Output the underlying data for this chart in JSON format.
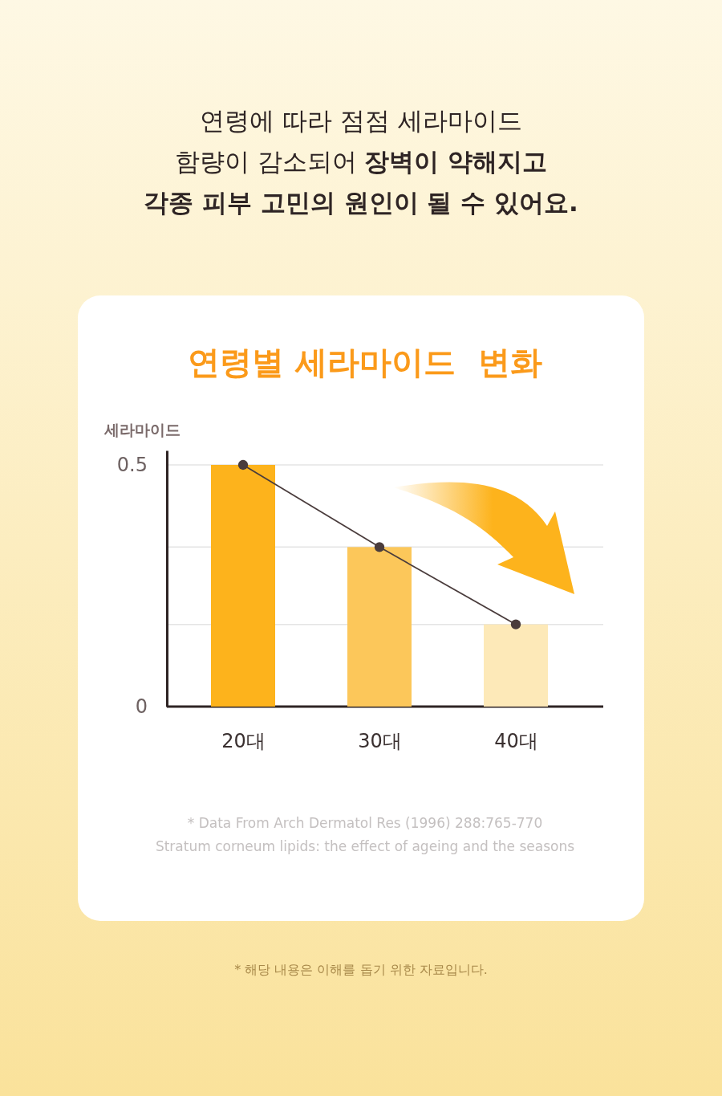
{
  "chart_data": {
    "type": "bar",
    "title": "연령별 세라마이드  변화",
    "ylabel": "세라마이드",
    "categories": [
      "20대",
      "30대",
      "40대"
    ],
    "series": [
      {
        "colors": [
          "#fdb31c",
          "#fcc75a",
          "#fde9b8"
        ],
        "values": [
          0.5,
          0.33,
          0.17
        ]
      },
      {
        "type": "line",
        "color": "#4a3c3c",
        "values": [
          0.5,
          0.33,
          0.17
        ],
        "marker": "circle",
        "line_style": "solid"
      }
    ],
    "ylim": [
      0,
      0.53
    ],
    "yticks": [
      0,
      {
        "value": 0.17,
        "label": null
      },
      {
        "value": 0.33,
        "label": null
      },
      0.5
    ],
    "grid": "y",
    "annotations": [
      "연령에 따라 점점 세라마이드",
      "함량이 감소되어",
      "장벽이 약해지고",
      "각종 피부 고민의 원인이 될 수 있어요.",
      "* Data From Arch Dermatol Res (1996) 288:765-770",
      "Stratum corneum lipids: the effect of ageing and the seasons",
      "* 해당 내용은 이해를 돕기 위한 자료입니다."
    ]
  }
}
